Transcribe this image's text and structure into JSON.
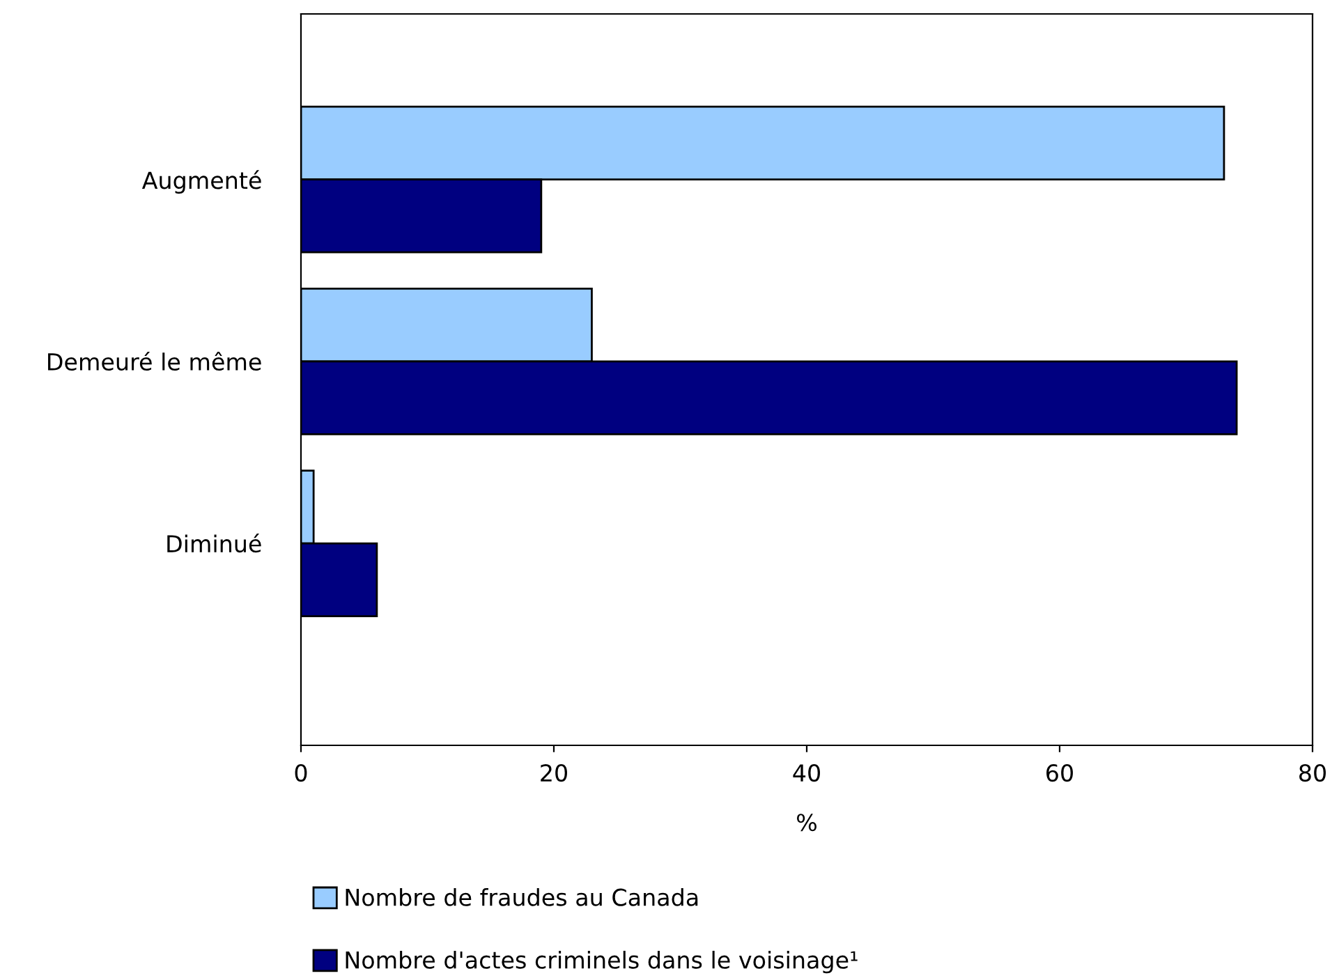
{
  "chart_data": {
    "type": "bar",
    "orientation": "horizontal",
    "xlabel": "%",
    "categories": [
      "Augmenté",
      "Demeuré le même",
      "Diminué"
    ],
    "series": [
      {
        "name": "Nombre de fraudes au Canada",
        "color": "#99ccff",
        "values": [
          73,
          23,
          1
        ]
      },
      {
        "name": "Nombre d'actes criminels dans le voisinage¹",
        "color": "#000080",
        "values": [
          19,
          74,
          6
        ]
      }
    ],
    "xlim": [
      0,
      80
    ],
    "xticks": [
      0,
      20,
      40,
      60,
      80
    ],
    "grid": false,
    "legend": "bottom"
  }
}
